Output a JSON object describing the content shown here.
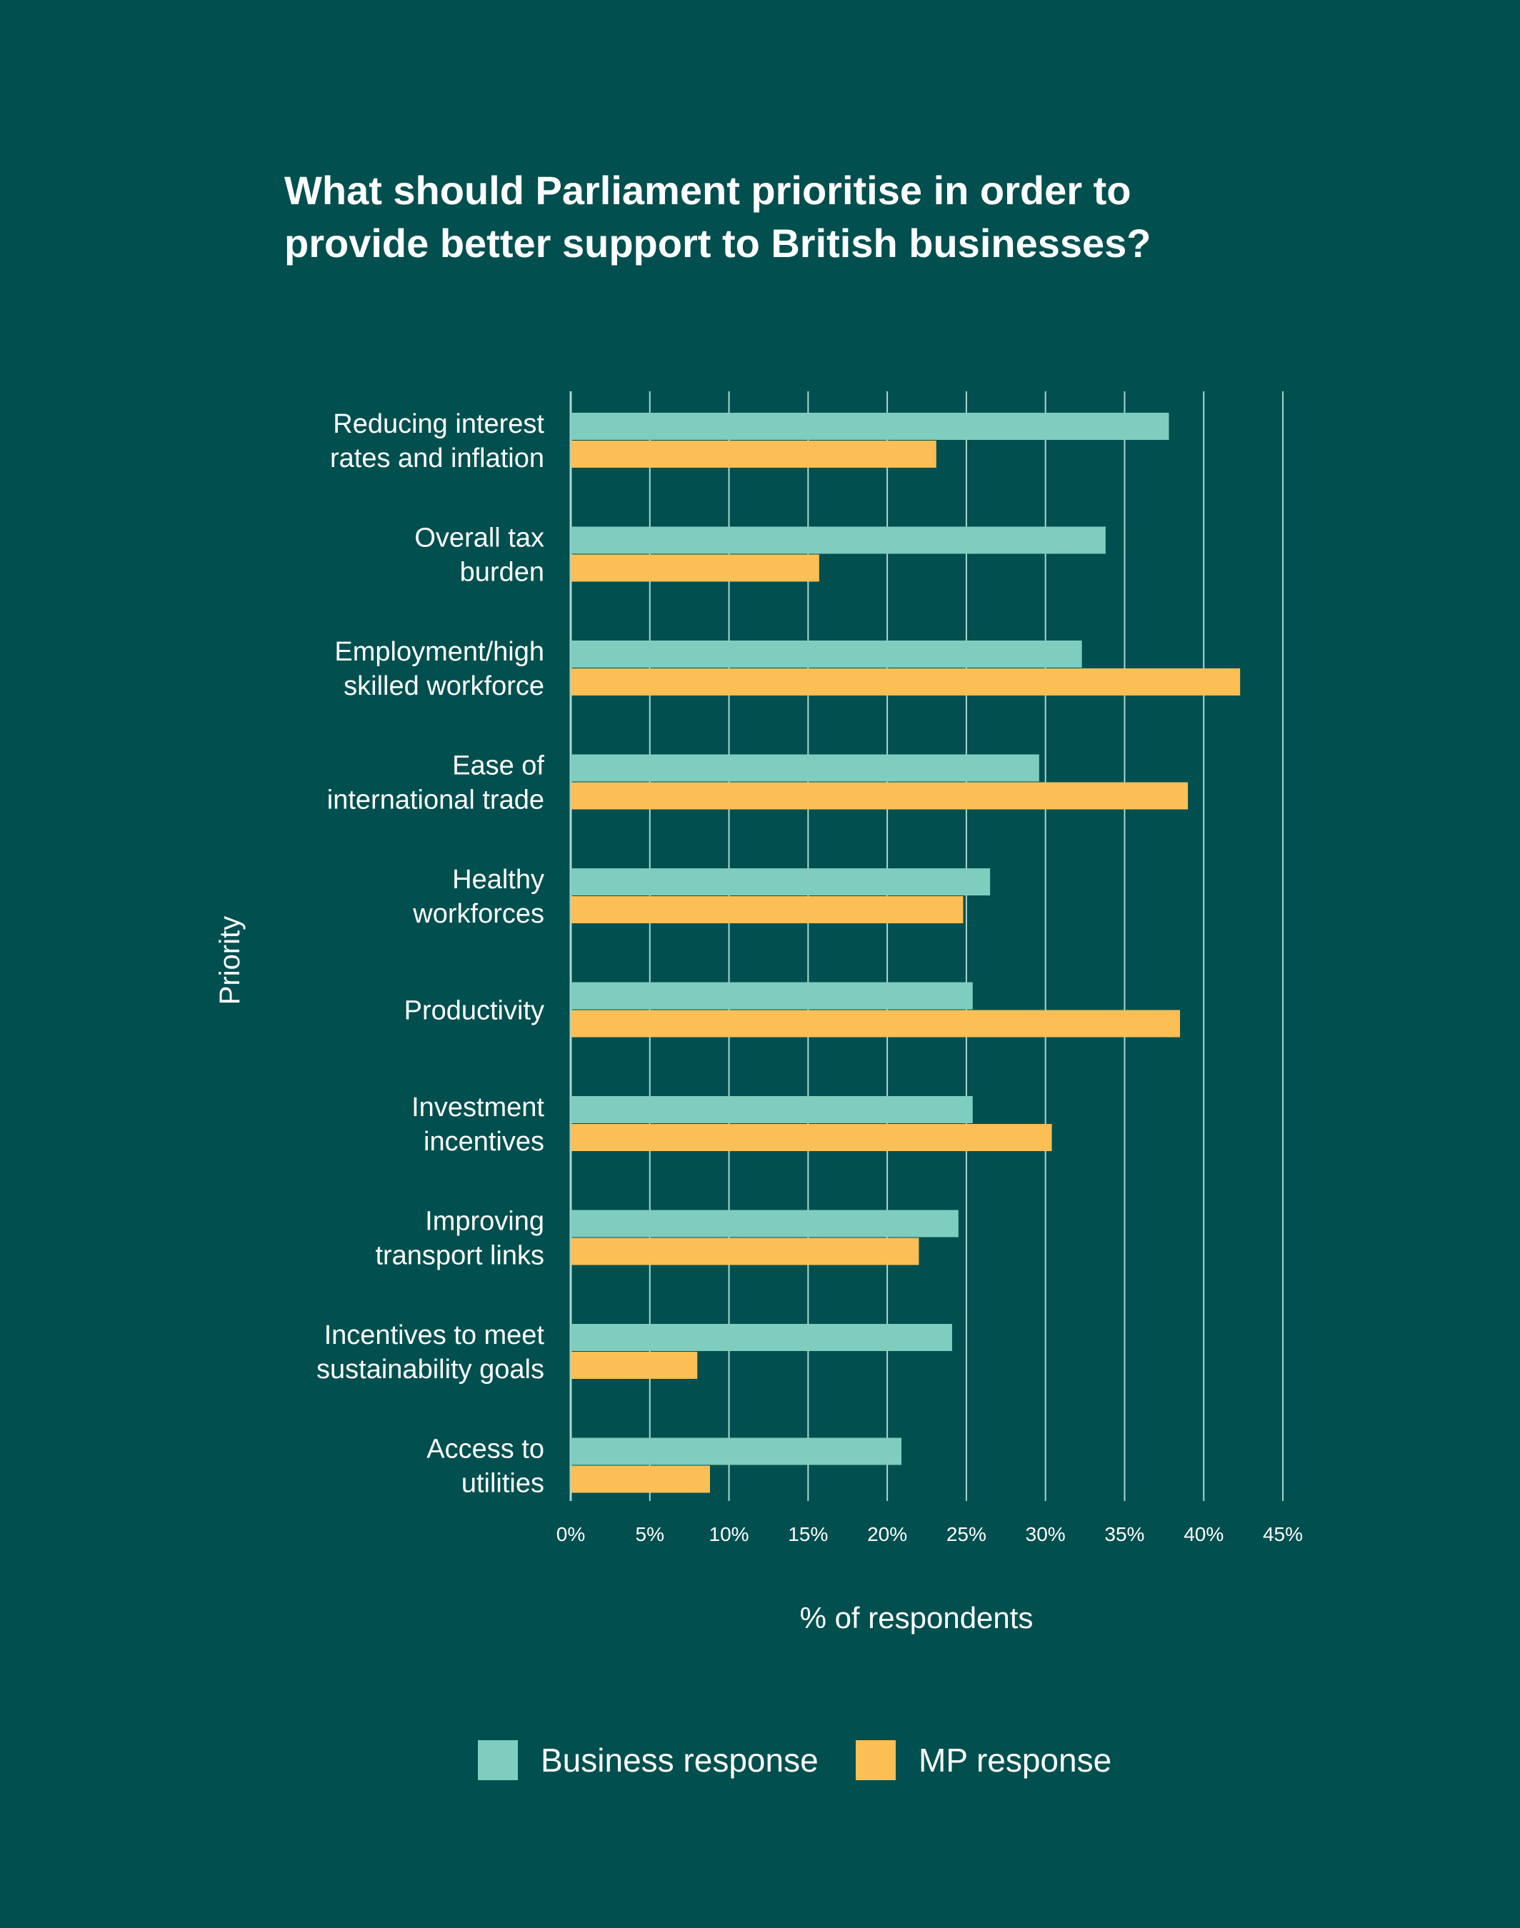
{
  "colors": {
    "background": "#014f4f",
    "business": "#7fcdbf",
    "mp": "#fbbf55",
    "grid": "#a8d8d0",
    "text": "#ffffff"
  },
  "chart_data": {
    "type": "bar",
    "orientation": "horizontal",
    "title_lines": [
      "What should Parliament prioritise in order to",
      "provide better support to British businesses?"
    ],
    "ylabel": "Priority",
    "xlabel": "% of respondents",
    "xlim": [
      0,
      45
    ],
    "xticks": [
      "0%",
      "5%",
      "10%",
      "15%",
      "20%",
      "25%",
      "30%",
      "35%",
      "40%",
      "45%"
    ],
    "grid": "vertical",
    "legend_position": "bottom",
    "categories": [
      [
        "Reducing interest",
        "rates and inflation"
      ],
      [
        "Overall tax",
        "burden"
      ],
      [
        "Employment/high",
        "skilled workforce"
      ],
      [
        "Ease of",
        "international trade"
      ],
      [
        "Healthy",
        "workforces"
      ],
      [
        "Productivity"
      ],
      [
        "Investment",
        "incentives"
      ],
      [
        "Improving",
        "transport links"
      ],
      [
        "Incentives to meet",
        "sustainability goals"
      ],
      [
        "Access to",
        "utilities"
      ]
    ],
    "series": [
      {
        "name": "Business response",
        "color": "#7fcdbf",
        "values": [
          37.8,
          33.8,
          32.3,
          29.6,
          26.5,
          25.4,
          25.4,
          24.5,
          24.1,
          20.9
        ]
      },
      {
        "name": "MP response",
        "color": "#fbbf55",
        "values": [
          23.1,
          15.7,
          42.3,
          39.0,
          24.8,
          38.5,
          30.4,
          22.0,
          8.0,
          8.8
        ]
      }
    ]
  }
}
